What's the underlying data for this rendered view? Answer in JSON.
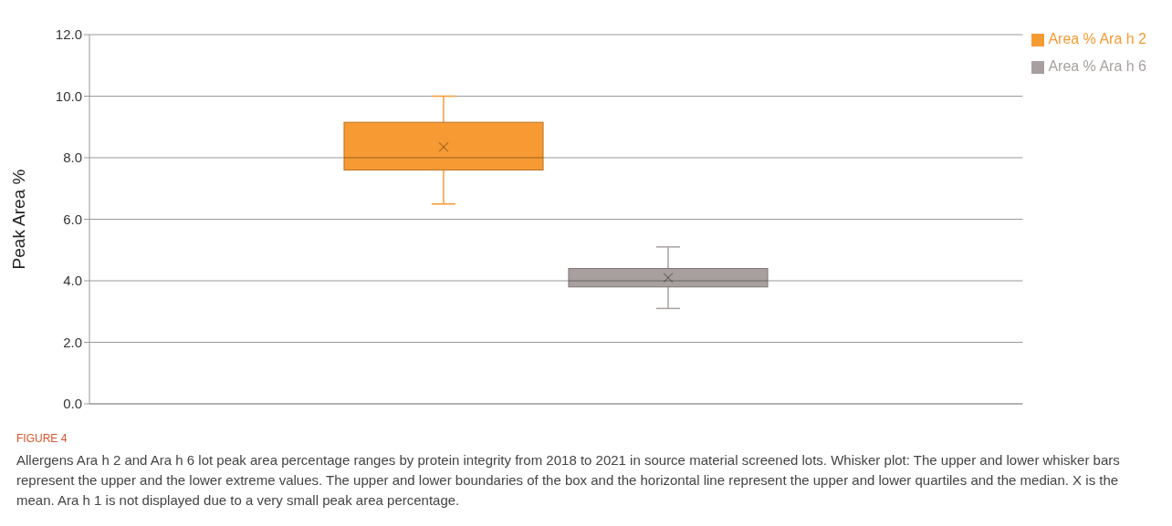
{
  "chart_data": {
    "type": "box",
    "ylabel": "Peak Area %",
    "categories": [
      null
    ],
    "series": [
      {
        "name": "Area % Ara h 2",
        "color": "#f79a33",
        "boxes": [
          {
            "low": 6.5,
            "q1": 7.6,
            "median": 8.0,
            "q3": 9.15,
            "high": 10.0,
            "mean": 8.35
          }
        ]
      },
      {
        "name": "Area % Ara h 6",
        "color": "#a8a09f",
        "boxes": [
          {
            "low": 3.1,
            "q1": 3.8,
            "median": 4.0,
            "q3": 4.4,
            "high": 5.1,
            "mean": 4.1
          }
        ]
      }
    ],
    "ylim": [
      0,
      12
    ],
    "yticks": [
      {
        "value": 0,
        "label": "0.0"
      },
      {
        "value": 2,
        "label": "2.0"
      },
      {
        "value": 4,
        "label": "4.0"
      },
      {
        "value": 6,
        "label": "6.0"
      },
      {
        "value": 8,
        "label": "8.0"
      },
      {
        "value": 10,
        "label": "10.0"
      },
      {
        "value": 12,
        "label": "12.0"
      }
    ],
    "grid": "y",
    "legend": "top right",
    "annotations": [
      "FIGURE 4",
      "Allergens Ara h 2 and Ara h 6 lot peak area percentage ranges by protein integrity from 2018 to 2021 in source material screened lots. Whisker plot: The upper and lower whisker bars represent the upper and the lower extreme values. The upper and lower boundaries of the box and the horizontal line represent the upper and lower quartiles and the median. X is the mean. Ara h 1 is not displayed due to a very small peak area percentage."
    ]
  }
}
